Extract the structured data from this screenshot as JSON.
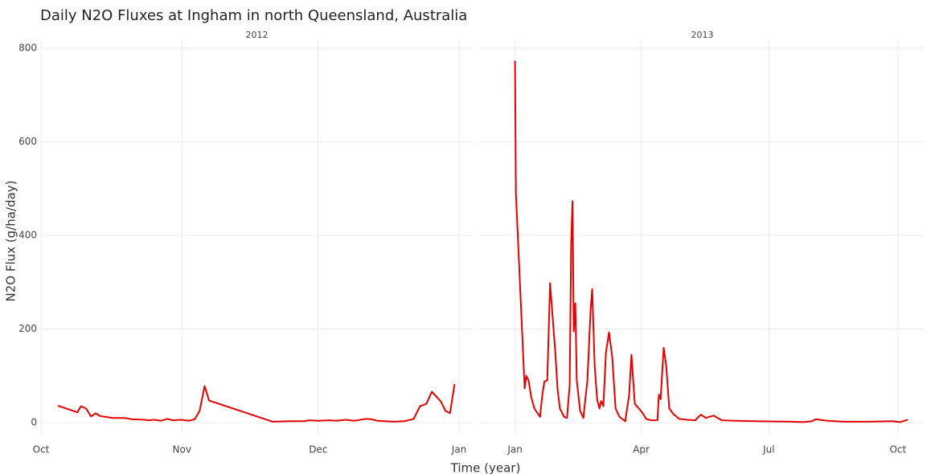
{
  "title": "Daily N2O Fluxes at Ingham in north Queensland, Australia",
  "x_label": "Time (year)",
  "y_label": "N2O Flux (g/ha/day)",
  "chart_data": [
    {
      "type": "line",
      "subtitle": "2012",
      "color": "#e60000",
      "x": [
        3.7,
        6.2,
        8,
        8.8,
        9.9,
        11,
        12,
        13,
        15.8,
        18.4,
        20,
        22.8,
        23.7,
        25,
        26.4,
        27.8,
        29,
        30.8,
        32.6,
        33.8,
        34.9,
        36,
        37,
        51,
        54.7,
        58,
        59,
        61,
        63.5,
        65,
        67,
        69,
        71.5,
        72.7,
        74,
        77.7,
        80,
        82,
        83.4,
        84.8,
        86,
        88,
        89,
        90,
        91
      ],
      "values": [
        36,
        28,
        22,
        35,
        30,
        13,
        20,
        14,
        10,
        10,
        7,
        6,
        5,
        6,
        4,
        8,
        5,
        6,
        4,
        7,
        25,
        78,
        47,
        2,
        3,
        3,
        5,
        4,
        5,
        4,
        6,
        4,
        8,
        7,
        4,
        2,
        3,
        8,
        35,
        40,
        66,
        45,
        25,
        20,
        82
      ],
      "xlim": [
        0,
        95
      ],
      "xticks": [
        {
          "value": 0,
          "label": "Oct"
        },
        {
          "value": 31,
          "label": "Nov"
        },
        {
          "value": 61,
          "label": "Dec"
        },
        {
          "value": 92,
          "label": "Jan"
        }
      ],
      "ylim": [
        -24,
        817
      ],
      "yticks": [
        0,
        200,
        400,
        600,
        800
      ],
      "grid": true
    },
    {
      "type": "line",
      "subtitle": "2013",
      "color": "#e60000",
      "x": [
        0,
        0.6,
        6.9,
        8,
        9.7,
        11.5,
        13.8,
        17.8,
        19.5,
        21,
        23,
        25,
        28.7,
        30.4,
        32,
        35,
        37,
        39,
        40,
        41,
        41.9,
        43,
        44,
        46.4,
        48.7,
        51.6,
        53.9,
        55,
        56.8,
        58.5,
        60.2,
        61.4,
        63,
        64.8,
        67,
        69.3,
        71.7,
        74.5,
        78.6,
        81.4,
        83,
        85.4,
        88.9,
        91,
        93.5,
        97,
        101.5,
        102.6,
        103.8,
        106,
        107.8,
        110,
        113,
        117,
        122.7,
        128.4,
        132.5,
        136,
        141.6,
        147.4,
        157,
        171,
        197,
        206,
        211.6,
        214.4,
        223,
        234.5,
        251.7,
        269,
        274.6,
        280
      ],
      "values": [
        773,
        490,
        73,
        100,
        90,
        55,
        30,
        12,
        60,
        88,
        90,
        298,
        150,
        70,
        30,
        12,
        10,
        80,
        380,
        473,
        195,
        255,
        90,
        25,
        10,
        90,
        240,
        285,
        120,
        50,
        30,
        46,
        35,
        150,
        193,
        140,
        30,
        12,
        3,
        60,
        145,
        40,
        28,
        20,
        8,
        5,
        5,
        60,
        50,
        160,
        120,
        30,
        18,
        8,
        6,
        5,
        17,
        10,
        15,
        5,
        4,
        3,
        2,
        1,
        3,
        7,
        4,
        2,
        2,
        3,
        1,
        6
      ],
      "xlim": [
        -25,
        292
      ],
      "xticks": [
        {
          "value": 0,
          "label": "Jan"
        },
        {
          "value": 90,
          "label": "Apr"
        },
        {
          "value": 181,
          "label": "Jul"
        },
        {
          "value": 273,
          "label": "Oct"
        }
      ],
      "ylim": [
        -24,
        817
      ],
      "yticks": [
        0,
        200,
        400,
        600,
        800
      ],
      "grid": true
    }
  ]
}
